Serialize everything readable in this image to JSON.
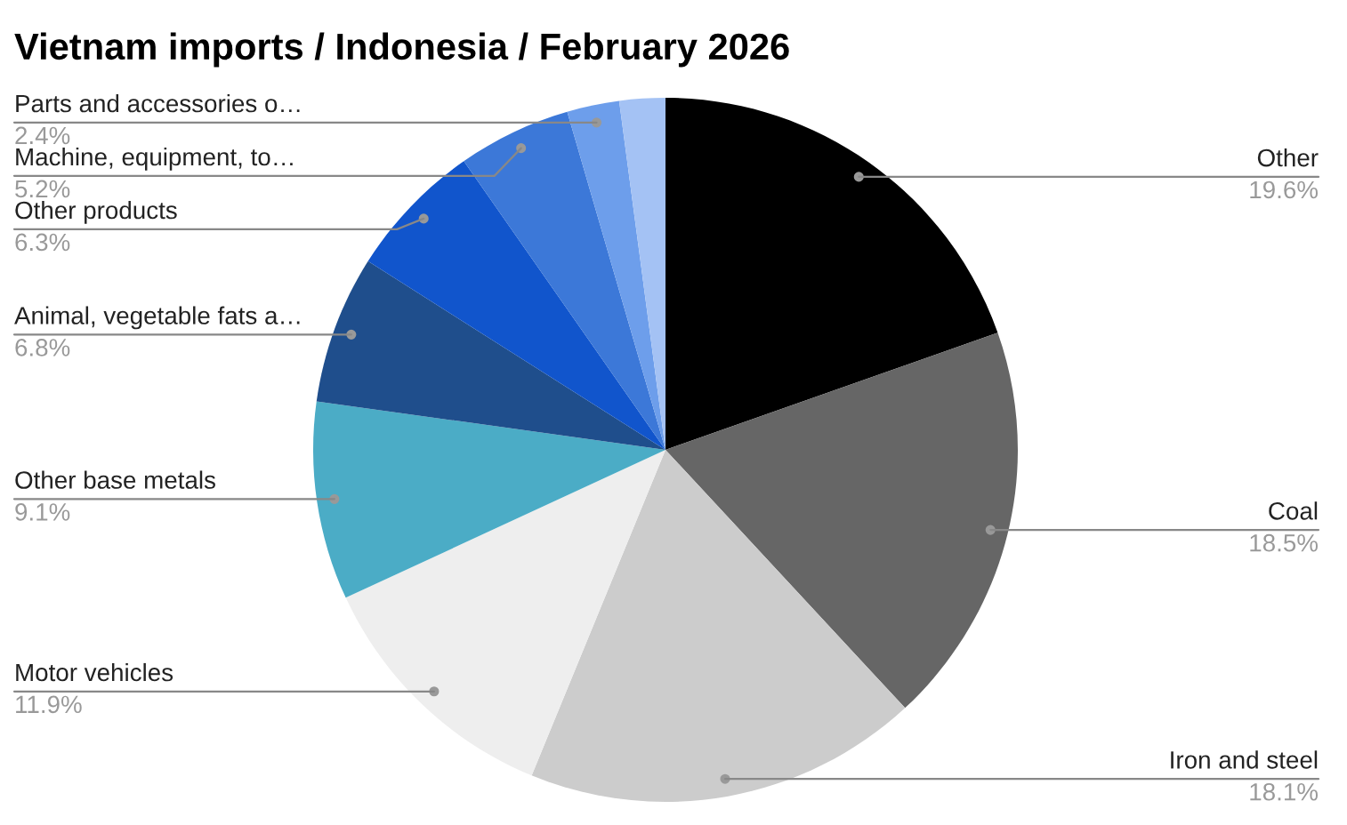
{
  "chart_data": {
    "type": "pie",
    "title": "Vietnam imports / Indonesia / February 2026",
    "categories": [
      "Other",
      "Coal",
      "Iron and steel",
      "Motor vehicles",
      "Other base metals",
      "Animal, vegetable fats a…",
      "Other products",
      "Machine, equipment, to…",
      "Parts and accessories o…",
      null
    ],
    "values": [
      19.6,
      18.5,
      18.1,
      11.9,
      9.1,
      6.8,
      6.3,
      5.2,
      2.4,
      2.1
    ],
    "value_labels": [
      "19.6%",
      "18.5%",
      "18.1%",
      "11.9%",
      "9.1%",
      "6.8%",
      "6.3%",
      "5.2%",
      "2.4%",
      null
    ],
    "colors": [
      "#000000",
      "#666666",
      "#cccccc",
      "#eeeeee",
      "#4bacc6",
      "#1f4e8c",
      "#1155cc",
      "#3c78d8",
      "#6d9eeb",
      "#a4c2f4"
    ],
    "legend": false
  }
}
